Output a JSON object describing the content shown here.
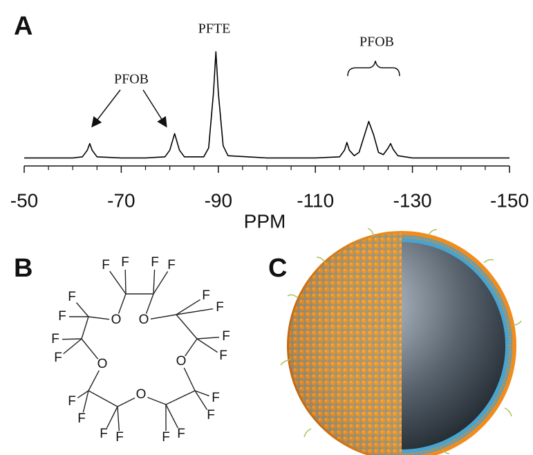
{
  "panels": [
    "A",
    "B",
    "C"
  ],
  "chart_data": {
    "type": "line",
    "xlabel": "PPM",
    "xlim": [
      -50,
      -150
    ],
    "xticks": [
      -50,
      -70,
      -90,
      -110,
      -130,
      -150
    ],
    "xminorticks": [
      -55,
      -60,
      -65,
      -75,
      -80,
      -85,
      -95,
      -100,
      -105,
      -115,
      -120,
      -125,
      -135,
      -140,
      -145
    ],
    "ylim": [
      0,
      100
    ],
    "color": "#000000",
    "x": [
      -50,
      -55,
      -60,
      -62,
      -63,
      -63.5,
      -64,
      -65,
      -70,
      -75,
      -79,
      -80,
      -81,
      -82,
      -83,
      -87,
      -88,
      -89,
      -89.5,
      -90,
      -91,
      -92,
      -100,
      -110,
      -115,
      -116,
      -116.5,
      -117,
      -118,
      -119,
      -120,
      -121,
      -122,
      -123,
      -124,
      -125,
      -125.5,
      -126,
      -127,
      -130,
      -140,
      -150
    ],
    "values": [
      1,
      1,
      1,
      2,
      8,
      14,
      8,
      2,
      1,
      1,
      2,
      8,
      23,
      8,
      2,
      2,
      10,
      60,
      97,
      60,
      12,
      3,
      1,
      1,
      2,
      8,
      15,
      8,
      3,
      6,
      20,
      34,
      22,
      6,
      4,
      10,
      14,
      9,
      3,
      1,
      1,
      1
    ],
    "annotations": [
      {
        "text": "PFOB"
      },
      {
        "text": "PFTE"
      },
      {
        "text": "PFOB"
      }
    ]
  },
  "structure": {
    "oxygens": [
      "O",
      "O",
      "O",
      "O",
      "O"
    ],
    "fluorines": [
      "F",
      "F",
      "F",
      "F",
      "F",
      "F",
      "F",
      "F",
      "F",
      "F",
      "F",
      "F",
      "F",
      "F",
      "F",
      "F",
      "F",
      "F",
      "F",
      "F"
    ]
  }
}
